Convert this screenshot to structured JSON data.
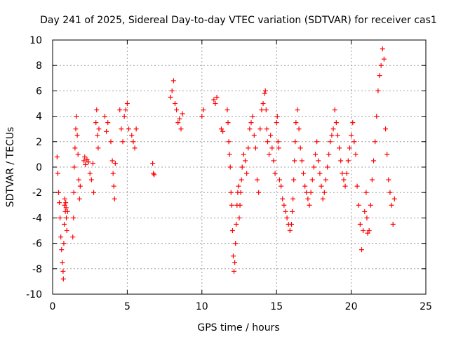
{
  "chart_data": {
    "type": "scatter",
    "title": "Day 241 of 2025, Sidereal Day-to-day VTEC variation (SDTVAR) for receiver cas1",
    "xlabel": "GPS time / hours",
    "ylabel": "SDTVAR / TECUs",
    "xlim": [
      0,
      25
    ],
    "ylim": [
      -10,
      10
    ],
    "xticks": [
      0,
      5,
      10,
      15,
      20,
      25
    ],
    "yticks": [
      -10,
      -8,
      -6,
      -4,
      -2,
      0,
      2,
      4,
      6,
      8,
      10
    ],
    "xtick_labels": [
      "0",
      "5",
      "10",
      "15",
      "20",
      "25"
    ],
    "ytick_labels": [
      "-10",
      "-8",
      "-6",
      "-4",
      "-2",
      "0",
      "2",
      "4",
      "6",
      "8",
      "10"
    ],
    "grid": true,
    "marker": "plus",
    "color": "#ff0000",
    "series": [
      {
        "name": "SDTVAR",
        "x": [
          0.3,
          0.35,
          0.4,
          0.45,
          0.5,
          0.55,
          0.6,
          0.65,
          0.7,
          0.72,
          0.75,
          0.78,
          0.8,
          0.82,
          0.85,
          0.88,
          0.9,
          0.92,
          0.95,
          1.0,
          1.35,
          1.4,
          1.42,
          1.45,
          1.5,
          1.55,
          1.6,
          1.65,
          1.7,
          1.75,
          1.8,
          1.85,
          2.1,
          2.15,
          2.2,
          2.3,
          2.4,
          2.5,
          2.6,
          2.7,
          2.75,
          2.9,
          2.95,
          3.0,
          3.05,
          3.1,
          3.5,
          3.6,
          3.7,
          3.9,
          4.0,
          4.05,
          4.1,
          4.15,
          4.2,
          4.5,
          4.6,
          4.7,
          4.8,
          4.9,
          5.0,
          5.1,
          5.3,
          5.4,
          5.5,
          5.6,
          6.7,
          6.75,
          6.8,
          7.9,
          8.0,
          8.1,
          8.2,
          8.3,
          8.4,
          8.5,
          8.6,
          8.7,
          10.0,
          10.1,
          10.8,
          10.9,
          11.0,
          11.3,
          11.4,
          11.7,
          11.75,
          11.8,
          11.85,
          11.9,
          11.95,
          12.0,
          12.05,
          12.1,
          12.15,
          12.2,
          12.25,
          12.3,
          12.35,
          12.4,
          12.45,
          12.5,
          12.55,
          12.6,
          12.65,
          12.7,
          12.8,
          12.9,
          13.0,
          13.1,
          13.2,
          13.3,
          13.4,
          13.5,
          13.6,
          13.7,
          13.8,
          13.9,
          14.0,
          14.1,
          14.2,
          14.25,
          14.3,
          14.35,
          14.4,
          14.5,
          14.6,
          14.7,
          14.8,
          14.9,
          15.0,
          15.05,
          15.1,
          15.15,
          15.2,
          15.3,
          15.4,
          15.5,
          15.6,
          15.7,
          15.8,
          15.9,
          16.0,
          16.05,
          16.1,
          16.15,
          16.2,
          16.25,
          16.3,
          16.4,
          16.5,
          16.6,
          16.7,
          16.8,
          16.9,
          17.0,
          17.1,
          17.2,
          17.3,
          17.4,
          17.5,
          17.6,
          17.7,
          17.8,
          17.9,
          18.0,
          18.1,
          18.2,
          18.3,
          18.4,
          18.5,
          18.6,
          18.7,
          18.8,
          18.9,
          19.0,
          19.1,
          19.2,
          19.3,
          19.4,
          19.5,
          19.6,
          19.7,
          19.8,
          19.9,
          20.0,
          20.1,
          20.2,
          20.3,
          20.4,
          20.5,
          20.6,
          20.7,
          20.8,
          20.9,
          21.0,
          21.05,
          21.1,
          21.2,
          21.3,
          21.4,
          21.5,
          21.6,
          21.7,
          21.8,
          21.9,
          22.0,
          22.1,
          22.2,
          22.3,
          22.4,
          22.5,
          22.6,
          22.7,
          22.8,
          22.9
        ],
        "y": [
          0.8,
          -0.5,
          -2.0,
          -2.8,
          -4.0,
          -5.5,
          -6.5,
          -7.5,
          -8.2,
          -8.8,
          -6.0,
          -4.5,
          -3.0,
          -2.5,
          -3.5,
          -2.8,
          -3.2,
          -4.0,
          -5.0,
          -3.5,
          -5.5,
          -4.0,
          -2.0,
          0.0,
          1.5,
          3.0,
          4.0,
          2.5,
          1.0,
          -1.0,
          -2.5,
          -1.5,
          0.5,
          0.8,
          0.2,
          0.6,
          0.4,
          -0.5,
          -1.0,
          0.3,
          -2.0,
          3.5,
          4.5,
          2.5,
          1.5,
          3.0,
          4.0,
          2.8,
          3.5,
          2.0,
          0.5,
          -0.5,
          -1.5,
          -2.5,
          0.3,
          4.5,
          3.0,
          2.0,
          4.0,
          4.5,
          5.0,
          3.0,
          2.5,
          2.0,
          1.5,
          3.0,
          0.3,
          -0.5,
          -0.6,
          5.5,
          6.0,
          6.8,
          5.0,
          4.5,
          3.5,
          3.8,
          3.0,
          4.2,
          4.0,
          4.5,
          5.3,
          5.0,
          5.5,
          3.0,
          2.8,
          4.5,
          3.5,
          2.0,
          1.0,
          0.0,
          -2.0,
          -3.0,
          -5.0,
          -7.0,
          -8.2,
          -7.5,
          -6.0,
          -4.5,
          -3.0,
          -2.0,
          -1.5,
          -4.0,
          -3.0,
          -2.0,
          -1.0,
          0.0,
          1.0,
          0.5,
          -0.5,
          1.5,
          3.0,
          3.5,
          4.0,
          2.5,
          1.5,
          -1.0,
          -2.0,
          3.0,
          4.5,
          5.0,
          5.8,
          6.0,
          4.5,
          3.0,
          2.0,
          1.0,
          2.5,
          1.5,
          0.5,
          -0.5,
          3.5,
          4.0,
          2.0,
          1.5,
          -1.0,
          -1.5,
          -2.5,
          -3.0,
          -3.5,
          -4.0,
          -4.5,
          -5.0,
          -4.5,
          -3.5,
          -2.5,
          -1.0,
          0.5,
          2.0,
          3.5,
          4.5,
          3.0,
          1.5,
          0.5,
          -0.5,
          -1.5,
          -2.0,
          -2.5,
          -3.0,
          -2.0,
          -1.0,
          0.0,
          1.0,
          2.0,
          0.5,
          -0.5,
          -1.5,
          -2.5,
          -2.0,
          -1.0,
          0.0,
          1.0,
          2.0,
          2.5,
          3.0,
          4.5,
          3.5,
          2.5,
          1.5,
          0.5,
          -0.5,
          -1.0,
          -1.5,
          -0.5,
          0.5,
          1.5,
          2.5,
          3.5,
          2.0,
          1.0,
          -1.5,
          -3.0,
          -4.5,
          -6.5,
          -5.0,
          -3.5,
          -2.0,
          -4.0,
          -5.2,
          -5.0,
          -3.0,
          -1.0,
          0.5,
          2.0,
          4.0,
          6.0,
          7.2,
          8.0,
          9.3,
          8.5,
          3.0,
          1.0,
          -1.0,
          -2.0,
          -3.0,
          -4.5,
          -2.5
        ]
      }
    ]
  }
}
